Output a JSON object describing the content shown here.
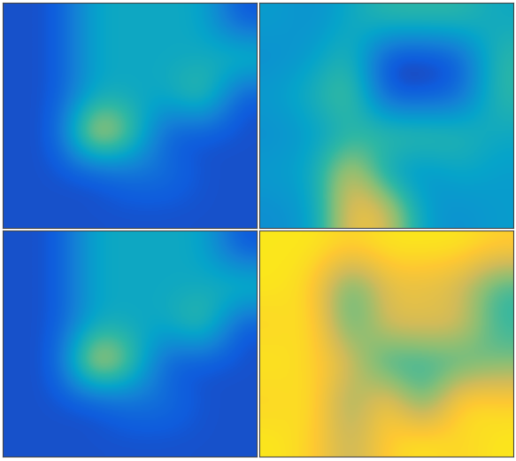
{
  "chart_data": [
    {
      "type": "heatmap",
      "tick_labels": false,
      "color_range": [
        0,
        1
      ],
      "cells": [
        [
          0.1,
          0.1,
          0.4,
          0.4,
          0.4,
          0.4,
          0.1
        ],
        [
          0.1,
          0.1,
          0.4,
          0.4,
          0.4,
          0.4,
          0.5
        ],
        [
          0.1,
          0.1,
          0.4,
          0.4,
          0.4,
          0.6,
          0.1
        ],
        [
          0.1,
          0.1,
          0.9,
          0.6,
          0.1,
          0.1,
          0.1
        ],
        [
          0.1,
          0.1,
          0.1,
          0.2,
          0.2,
          0.1,
          0.1
        ],
        [
          0.1,
          0.1,
          0.1,
          0.1,
          0.1,
          0.1,
          0.1
        ]
      ]
    },
    {
      "type": "heatmap",
      "tick_labels": false,
      "color_range": [
        0,
        1
      ],
      "cells": [
        [
          0.35,
          0.3,
          0.4,
          0.5,
          0.5,
          0.5,
          0.4
        ],
        [
          0.3,
          0.35,
          0.5,
          0.05,
          0.05,
          0.1,
          0.5
        ],
        [
          0.35,
          0.45,
          0.6,
          0.1,
          0.1,
          0.15,
          0.5
        ],
        [
          0.3,
          0.35,
          0.45,
          0.55,
          0.55,
          0.5,
          0.4
        ],
        [
          0.35,
          0.4,
          0.8,
          0.35,
          0.3,
          0.4,
          0.35
        ],
        [
          0.3,
          0.35,
          0.85,
          0.8,
          0.35,
          0.3,
          0.35
        ]
      ]
    },
    {
      "type": "heatmap",
      "tick_labels": false,
      "color_range": [
        0,
        1
      ],
      "cells": [
        [
          0.1,
          0.1,
          0.4,
          0.4,
          0.4,
          0.4,
          0.1
        ],
        [
          0.1,
          0.1,
          0.4,
          0.4,
          0.4,
          0.4,
          0.5
        ],
        [
          0.1,
          0.1,
          0.4,
          0.4,
          0.4,
          0.6,
          0.1
        ],
        [
          0.1,
          0.1,
          0.9,
          0.6,
          0.1,
          0.1,
          0.1
        ],
        [
          0.1,
          0.1,
          0.1,
          0.2,
          0.2,
          0.1,
          0.1
        ],
        [
          0.1,
          0.1,
          0.1,
          0.1,
          0.1,
          0.1,
          0.1
        ]
      ]
    },
    {
      "type": "heatmap",
      "tick_labels": false,
      "color_range": [
        0,
        1
      ],
      "cells": [
        [
          0.95,
          0.95,
          0.9,
          0.95,
          0.95,
          0.95,
          0.9
        ],
        [
          0.95,
          0.9,
          0.5,
          0.8,
          0.8,
          0.75,
          0.5
        ],
        [
          0.9,
          0.95,
          0.5,
          0.8,
          0.8,
          0.8,
          0.5
        ],
        [
          0.95,
          0.9,
          0.8,
          0.45,
          0.5,
          0.5,
          0.6
        ],
        [
          0.9,
          0.95,
          0.6,
          0.9,
          0.5,
          0.95,
          0.9
        ],
        [
          0.95,
          0.9,
          0.7,
          0.9,
          0.95,
          0.9,
          0.95
        ]
      ]
    }
  ]
}
